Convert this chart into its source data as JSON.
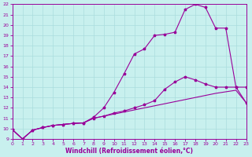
{
  "xlabel": "Windchill (Refroidissement éolien,°C)",
  "xlim": [
    0,
    23
  ],
  "ylim": [
    9,
    22
  ],
  "xticks": [
    0,
    1,
    2,
    3,
    4,
    5,
    6,
    7,
    8,
    9,
    10,
    11,
    12,
    13,
    14,
    15,
    16,
    17,
    18,
    19,
    20,
    21,
    22,
    23
  ],
  "yticks": [
    9,
    10,
    11,
    12,
    13,
    14,
    15,
    16,
    17,
    18,
    19,
    20,
    21,
    22
  ],
  "bg_color": "#c8f0ee",
  "line_color": "#990099",
  "grid_color": "#aadddd",
  "line1_x": [
    0,
    1,
    2,
    3,
    4,
    5,
    6,
    7,
    8,
    9,
    10,
    11,
    12,
    13,
    14,
    15,
    16,
    17,
    18,
    19,
    20,
    21,
    22,
    23
  ],
  "line1_y": [
    9.9,
    9.0,
    9.85,
    10.1,
    10.3,
    10.4,
    10.5,
    10.55,
    11.1,
    12.0,
    13.5,
    15.3,
    17.2,
    17.7,
    19.0,
    19.1,
    19.3,
    21.5,
    22.0,
    21.7,
    19.7,
    19.7,
    14.0,
    14.0
  ],
  "line2_x": [
    0,
    1,
    2,
    3,
    4,
    5,
    6,
    7,
    8,
    9,
    10,
    11,
    12,
    13,
    14,
    15,
    16,
    17,
    18,
    19,
    20,
    21,
    22,
    23
  ],
  "line2_y": [
    9.9,
    9.0,
    9.85,
    10.1,
    10.3,
    10.4,
    10.5,
    10.55,
    11.0,
    11.2,
    11.4,
    11.6,
    11.8,
    12.0,
    12.2,
    12.4,
    12.6,
    12.8,
    13.0,
    13.2,
    13.4,
    13.55,
    13.7,
    12.5
  ],
  "line3_x": [
    0,
    1,
    2,
    3,
    4,
    5,
    6,
    7,
    8,
    9,
    10,
    11,
    12,
    13,
    14,
    15,
    16,
    17,
    18,
    19,
    20,
    21,
    22,
    23
  ],
  "line3_y": [
    9.9,
    9.0,
    9.85,
    10.1,
    10.3,
    10.4,
    10.5,
    10.55,
    11.0,
    11.2,
    11.5,
    11.7,
    12.0,
    12.3,
    12.7,
    13.8,
    14.5,
    15.0,
    14.7,
    14.3,
    14.0,
    14.0,
    14.0,
    12.5
  ]
}
